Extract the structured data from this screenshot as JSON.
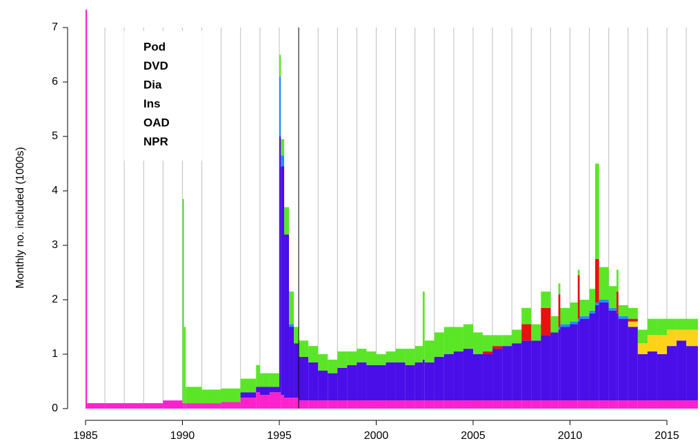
{
  "chart_data": {
    "type": "stacked_bar",
    "y_label": "Monthly no. included (1000s)",
    "xlim": [
      1985,
      2016.6
    ],
    "ylim": [
      0,
      7.3
    ],
    "xticks": [
      1985,
      1990,
      1995,
      2000,
      2005,
      2010,
      2015
    ],
    "yticks": [
      0,
      1,
      2,
      3,
      4,
      5,
      6,
      7
    ],
    "xgrid": [
      1986,
      1987,
      1988,
      1989,
      1990,
      1991,
      1992,
      1993,
      1994,
      1995,
      1996,
      1997,
      1998,
      1999,
      2000,
      2001,
      2002,
      2003,
      2004,
      2005,
      2006,
      2007,
      2008,
      2009,
      2010,
      2011,
      2012,
      2013,
      2014,
      2015,
      2016
    ],
    "vline": 1996,
    "x": [
      1985,
      1985.08,
      1986,
      1987,
      1988,
      1989,
      1990,
      1990.08,
      1990.17,
      1991,
      1992,
      1993,
      1993.8,
      1994,
      1994.5,
      1995,
      1995.08,
      1995.25,
      1995.5,
      1995.75,
      1996,
      1996.5,
      1997,
      1997.5,
      1998,
      1998.5,
      1999,
      1999.5,
      2000,
      2000.5,
      2001,
      2001.5,
      2002,
      2002.4,
      2002.5,
      2003,
      2003.5,
      2004,
      2004.5,
      2005,
      2005.5,
      2006,
      2006.5,
      2007,
      2007.5,
      2008,
      2008.5,
      2009,
      2009.4,
      2009.5,
      2010,
      2010.4,
      2010.5,
      2011,
      2011.3,
      2011.5,
      2012,
      2012.4,
      2012.5,
      2013,
      2013.5,
      2014,
      2014.5,
      2015,
      2015.5,
      2016
    ],
    "series": [
      {
        "name": "NPR",
        "color": "#ff22cc",
        "values": [
          7.5,
          0.1,
          0.1,
          0.1,
          0.1,
          0.15,
          0.1,
          0.1,
          0.1,
          0.1,
          0.12,
          0.2,
          0.3,
          0.25,
          0.3,
          0.3,
          0.25,
          0.2,
          0.2,
          0.2,
          0.15,
          0.15,
          0.15,
          0.15,
          0.15,
          0.15,
          0.15,
          0.15,
          0.15,
          0.15,
          0.15,
          0.15,
          0.15,
          0.15,
          0.15,
          0.15,
          0.15,
          0.15,
          0.15,
          0.15,
          0.15,
          0.15,
          0.15,
          0.15,
          0.15,
          0.15,
          0.15,
          0.15,
          0.15,
          0.15,
          0.15,
          0.15,
          0.15,
          0.15,
          0.15,
          0.15,
          0.15,
          0.15,
          0.15,
          0.15,
          0.15,
          0.15,
          0.15,
          0.15,
          0.15,
          0.15
        ]
      },
      {
        "name": "OAD",
        "color": "#4a0ee8",
        "values": [
          0,
          0,
          0,
          0,
          0,
          0,
          0,
          0,
          0,
          0,
          0,
          0.1,
          0.1,
          0.15,
          0.1,
          4.7,
          4.2,
          3.0,
          1.3,
          1.0,
          0.8,
          0.7,
          0.55,
          0.5,
          0.6,
          0.65,
          0.7,
          0.65,
          0.65,
          0.7,
          0.7,
          0.65,
          0.7,
          0.75,
          0.7,
          0.8,
          0.85,
          0.9,
          0.95,
          0.85,
          0.85,
          0.95,
          1.0,
          1.05,
          1.1,
          1.1,
          1.2,
          1.25,
          1.3,
          1.35,
          1.4,
          1.45,
          1.5,
          1.6,
          1.75,
          1.8,
          1.65,
          1.6,
          1.5,
          1.35,
          0.85,
          0.9,
          0.85,
          1.0,
          1.1,
          1.0
        ]
      },
      {
        "name": "Ins",
        "color": "#1e90ff",
        "values": [
          0,
          0,
          0,
          0,
          0,
          0,
          0,
          0,
          0,
          0,
          0,
          0,
          0,
          0,
          0,
          1.1,
          0.2,
          0,
          0.05,
          0,
          0,
          0,
          0,
          0,
          0,
          0,
          0,
          0,
          0,
          0,
          0,
          0,
          0,
          0,
          0,
          0,
          0,
          0,
          0,
          0,
          0,
          0,
          0,
          0,
          0,
          0,
          0,
          0,
          0.05,
          0.05,
          0.05,
          0.05,
          0.05,
          0.05,
          0.05,
          0.05,
          0.05,
          0,
          0.05,
          0,
          0,
          0,
          0,
          0,
          0,
          0
        ]
      },
      {
        "name": "Dia",
        "color": "#ffd21a",
        "values": [
          0,
          0,
          0,
          0,
          0,
          0,
          0,
          0,
          0,
          0,
          0,
          0,
          0,
          0,
          0,
          0,
          0,
          0,
          0,
          0,
          0,
          0,
          0,
          0,
          0,
          0,
          0,
          0,
          0,
          0,
          0,
          0,
          0,
          0,
          0,
          0,
          0,
          0,
          0,
          0,
          0,
          0,
          0,
          0,
          0,
          0,
          0,
          0,
          0,
          0,
          0,
          0,
          0,
          0,
          0,
          0,
          0,
          0,
          0,
          0.1,
          0.2,
          0.3,
          0.35,
          0.3,
          0.2,
          0.3
        ]
      },
      {
        "name": "DVD",
        "color": "#e81010",
        "values": [
          0,
          0,
          0,
          0,
          0,
          0,
          0,
          0,
          0,
          0,
          0,
          0,
          0,
          0,
          0,
          0,
          0,
          0,
          0,
          0,
          0,
          0,
          0,
          0,
          0,
          0,
          0,
          0,
          0,
          0,
          0,
          0,
          0,
          0,
          0,
          0,
          0,
          0,
          0,
          0,
          0.05,
          0.05,
          0,
          0,
          0.3,
          0,
          0.5,
          0,
          0.6,
          0,
          0,
          0.8,
          0,
          0,
          0.8,
          0,
          0,
          0.4,
          0,
          0.05,
          0,
          0,
          0,
          0,
          0,
          0
        ]
      },
      {
        "name": "Pod",
        "color": "#5ae626",
        "values": [
          0,
          0,
          0,
          0,
          0,
          0,
          3.75,
          1.4,
          0.3,
          0.25,
          0.25,
          0.25,
          0.4,
          0.25,
          0.25,
          0.4,
          0.3,
          0.5,
          0.6,
          0.3,
          0.3,
          0.3,
          0.3,
          0.25,
          0.3,
          0.25,
          0.25,
          0.25,
          0.2,
          0.2,
          0.25,
          0.3,
          0.3,
          1.25,
          0.4,
          0.45,
          0.5,
          0.45,
          0.45,
          0.4,
          0.3,
          0.2,
          0.2,
          0.25,
          0.3,
          0.3,
          0.3,
          0.3,
          0.2,
          0.3,
          0.35,
          0.1,
          0.3,
          0.4,
          1.75,
          0.6,
          0.4,
          0.4,
          0.2,
          0.2,
          0.25,
          0.3,
          0.3,
          0.2,
          0.2,
          0.2
        ]
      }
    ]
  }
}
